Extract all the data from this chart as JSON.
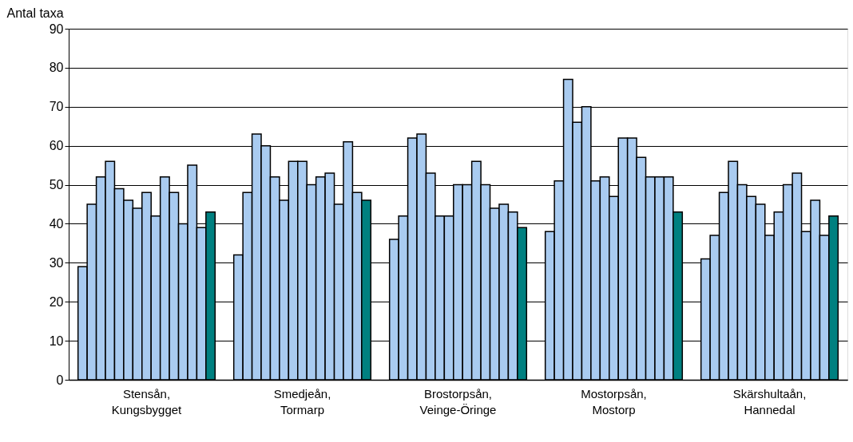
{
  "chart_data": {
    "type": "bar",
    "ylabel": "Antal taxa",
    "categories": [
      "Stensån, Kungsbygget",
      "Smedjeån, Tormarp",
      "Brostorpsån, Veinge-Öringe",
      "Mostorpsån, Mostorp",
      "Skärshultaån, Hannedal"
    ],
    "series": [
      {
        "color": "#a9cbf0",
        "values": [
          29,
          32,
          36,
          38,
          31
        ]
      },
      {
        "color": "#a9cbf0",
        "values": [
          45,
          48,
          42,
          51,
          37
        ]
      },
      {
        "color": "#a9cbf0",
        "values": [
          52,
          63,
          62,
          77,
          48
        ]
      },
      {
        "color": "#a9cbf0",
        "values": [
          56,
          60,
          63,
          66,
          56
        ]
      },
      {
        "color": "#a9cbf0",
        "values": [
          49,
          52,
          53,
          70,
          50
        ]
      },
      {
        "color": "#a9cbf0",
        "values": [
          46,
          46,
          42,
          51,
          47
        ]
      },
      {
        "color": "#a9cbf0",
        "values": [
          44,
          56,
          42,
          52,
          45
        ]
      },
      {
        "color": "#a9cbf0",
        "values": [
          48,
          56,
          50,
          47,
          37
        ]
      },
      {
        "color": "#a9cbf0",
        "values": [
          42,
          50,
          50,
          62,
          43
        ]
      },
      {
        "color": "#a9cbf0",
        "values": [
          52,
          52,
          56,
          62,
          50
        ]
      },
      {
        "color": "#a9cbf0",
        "values": [
          48,
          53,
          50,
          57,
          53
        ]
      },
      {
        "color": "#a9cbf0",
        "values": [
          40,
          45,
          44,
          52,
          38
        ]
      },
      {
        "color": "#a9cbf0",
        "values": [
          55,
          61,
          45,
          52,
          46
        ]
      },
      {
        "color": "#a9cbf0",
        "values": [
          39,
          48,
          43,
          52,
          37
        ]
      },
      {
        "color": "#008080",
        "values": [
          43,
          46,
          39,
          43,
          42
        ]
      }
    ],
    "ylim": [
      0,
      90
    ],
    "yticks": [
      0,
      10,
      20,
      30,
      40,
      50,
      60,
      70,
      80,
      90
    ],
    "grid": "y",
    "legend": false
  }
}
